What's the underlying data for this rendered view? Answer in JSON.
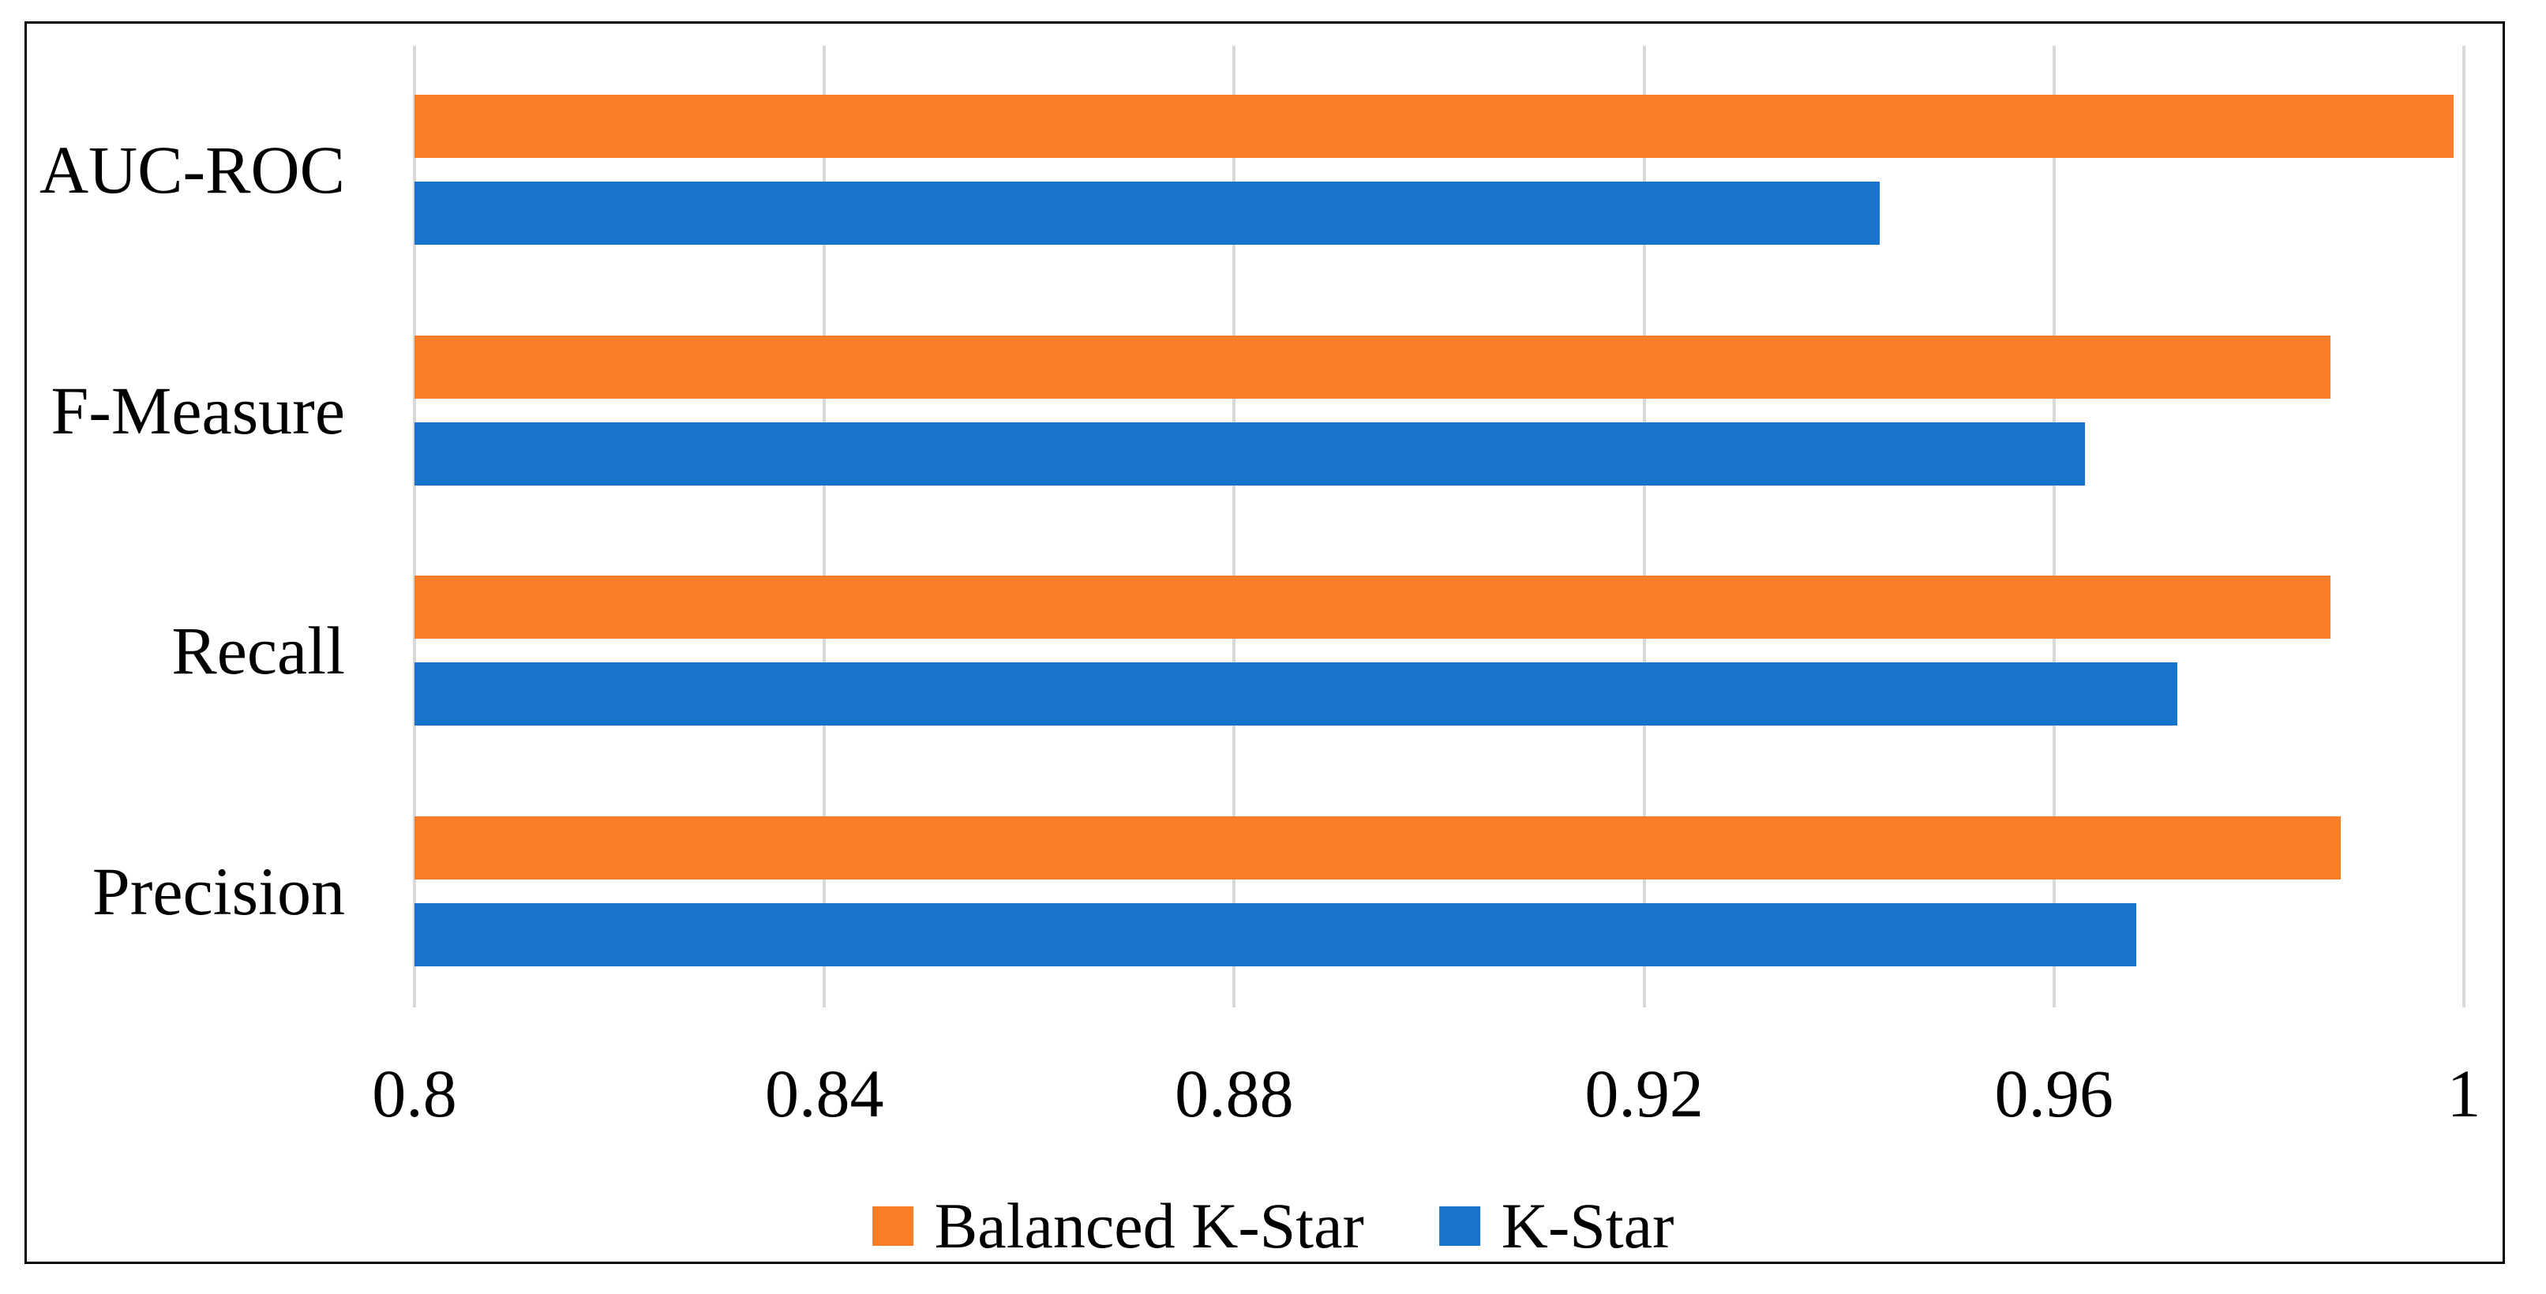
{
  "chart_data": {
    "type": "bar",
    "orientation": "horizontal",
    "title": "",
    "xlabel": "",
    "ylabel": "",
    "categories": [
      "AUC-ROC",
      "F-Measure",
      "Recall",
      "Precision"
    ],
    "series": [
      {
        "name": "Balanced K-Star",
        "color": "#F97E2A",
        "values": [
          0.999,
          0.987,
          0.987,
          0.988
        ]
      },
      {
        "name": "K-Star",
        "color": "#1874CB",
        "values": [
          0.943,
          0.963,
          0.972,
          0.968
        ]
      }
    ],
    "xlim": [
      0.8,
      1.0
    ],
    "xticks": [
      0.8,
      0.84,
      0.88,
      0.92,
      0.96,
      1.0
    ],
    "xtick_labels": [
      "0.8",
      "0.84",
      "0.88",
      "0.92",
      "0.96",
      "1"
    ],
    "grid": "vertical",
    "gridline_color": "#D9D9D9",
    "legend_position": "bottom",
    "frame_border_color": "#000000",
    "background_color": "#FFFFFF"
  }
}
